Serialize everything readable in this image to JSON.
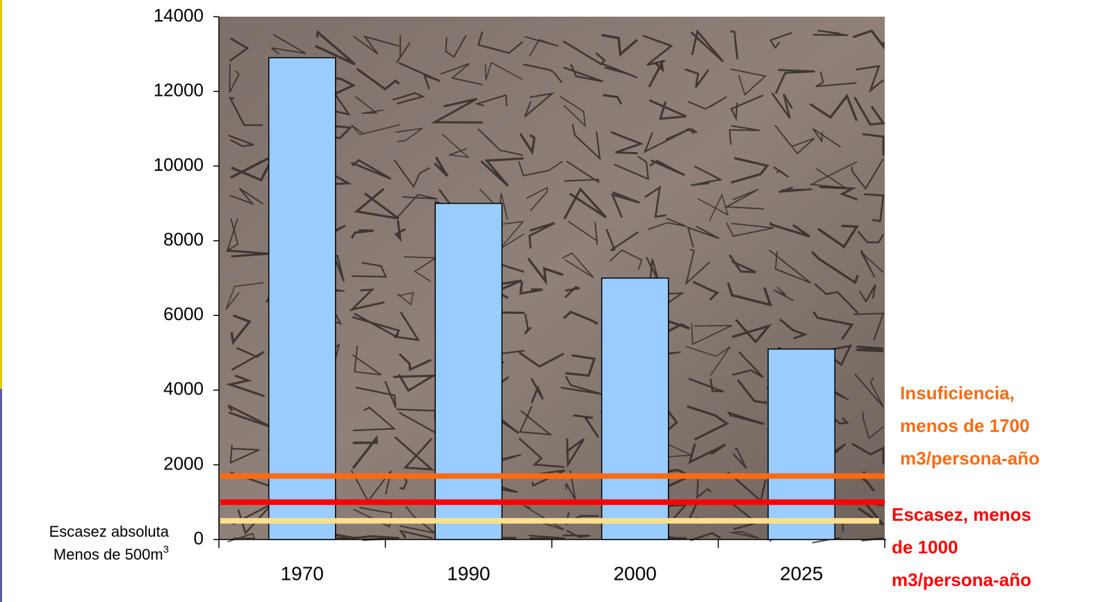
{
  "chart_data": {
    "type": "bar",
    "categories": [
      "1970",
      "1990",
      "2000",
      "2025"
    ],
    "values": [
      12900,
      9000,
      7000,
      5100
    ],
    "color": "#99ccff",
    "ylim": [
      0,
      14000
    ],
    "yticks": [
      0,
      2000,
      4000,
      6000,
      8000,
      10000,
      12000,
      14000
    ],
    "reference_lines": [
      {
        "value": 1700,
        "color": "#ff6a13",
        "label": [
          "Insuficiencia,",
          "menos de 1700",
          "m3/persona-año"
        ]
      },
      {
        "value": 1000,
        "color": "#ff0000",
        "label": [
          "Escasez, menos",
          "de 1000",
          "m3/persona-año"
        ]
      },
      {
        "value": 500,
        "color": "#ffe08a",
        "label": [
          "Escasez absoluta",
          "Menos de 500m",
          "3"
        ]
      }
    ]
  }
}
